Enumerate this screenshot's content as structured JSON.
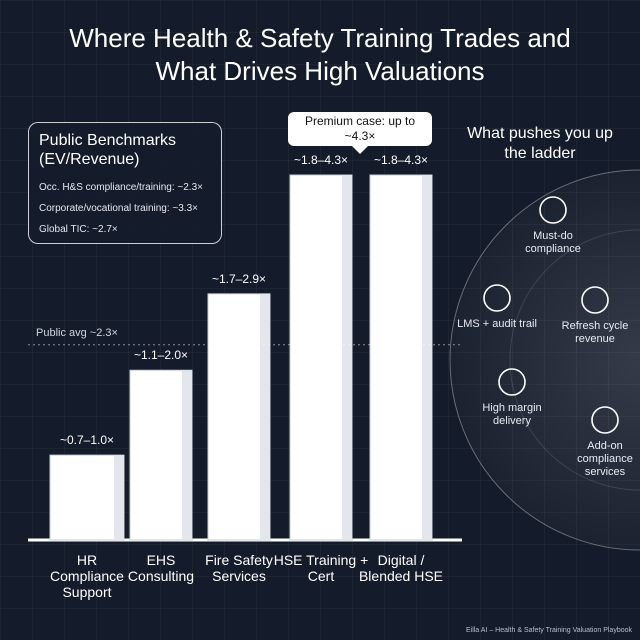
{
  "chart_data": {
    "type": "bar",
    "title": "Where Health & Safety Training Trades and What Drives High Valuations",
    "categories": [
      "HR Compliance Support",
      "EHS Consulting",
      "Fire Safety Services",
      "HSE Training + Cert",
      "Digital / Blended HSE"
    ],
    "values": [
      1.0,
      2.0,
      2.9,
      4.3,
      4.3
    ],
    "value_labels": [
      "~0.7–1.0×",
      "~1.1–2.0×",
      "~1.7–2.9×",
      "~1.8–4.3×",
      "~1.8–4.3×"
    ],
    "color": "#ffffff",
    "reference_line": {
      "value": 2.3,
      "label": "Public avg ~2.3×"
    },
    "callout": "Premium case: up to ~4.3×",
    "benchmarks": {
      "title": "Public Benchmarks (EV/Revenue)",
      "items": [
        "Occ. H&S compliance/training: ~2.3×",
        "Corporate/vocational training: ~3.3×",
        "Global TIC: ~2.7×"
      ]
    },
    "drivers": {
      "title": "What pushes you up the ladder",
      "items": [
        "Must-do compliance",
        "LMS + audit trail",
        "Refresh cycle revenue",
        "High margin delivery",
        "Add-on compliance services"
      ]
    },
    "footer": "Eilla AI – Health & Safety Training Valuation Playbook"
  }
}
